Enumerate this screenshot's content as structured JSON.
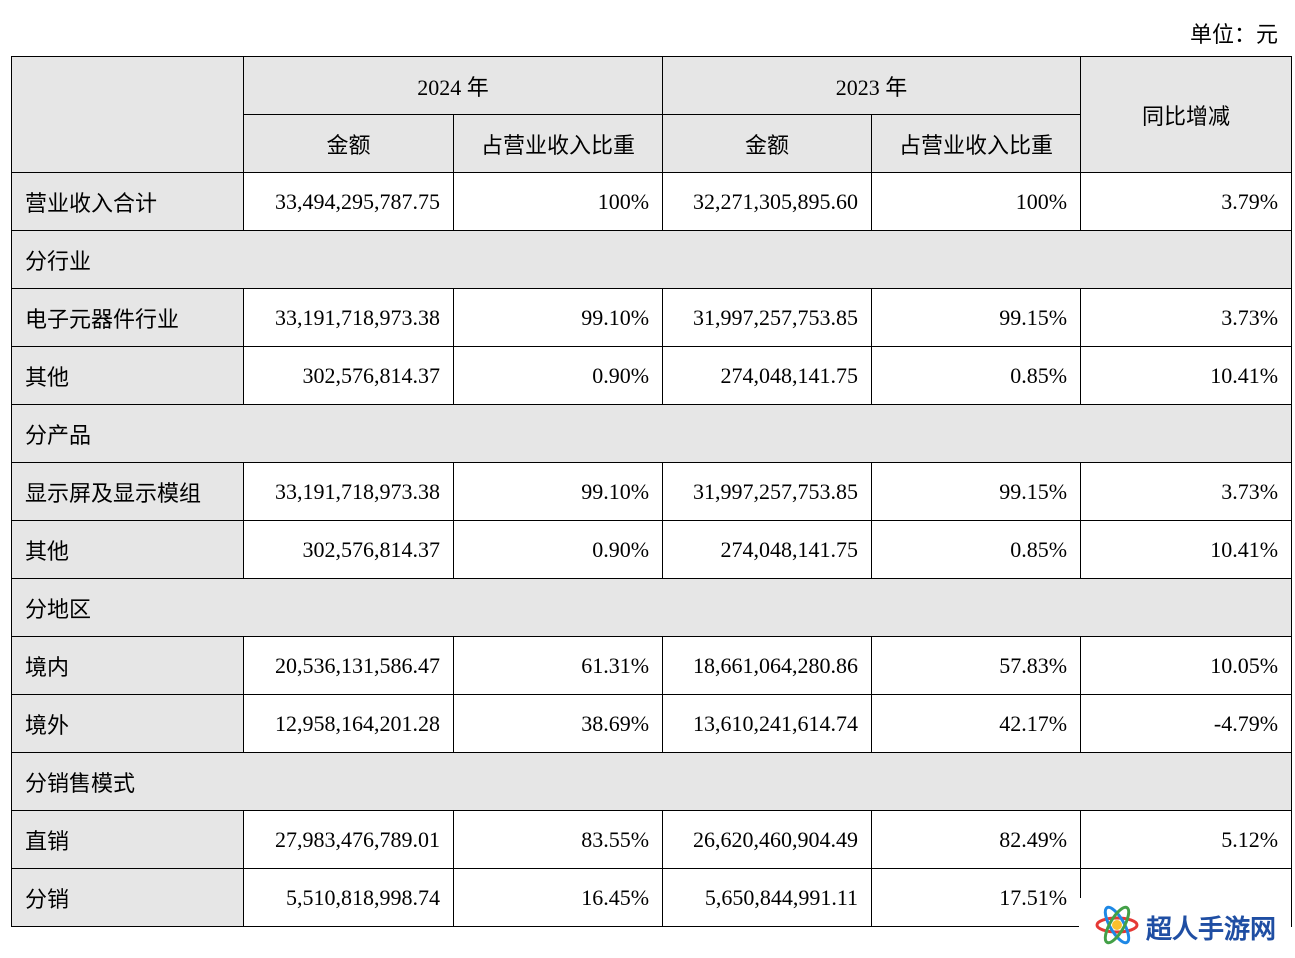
{
  "unit_label": "单位：元",
  "header": {
    "year_2024": "2024 年",
    "year_2023": "2023 年",
    "amount": "金额",
    "ratio": "占营业收入比重",
    "yoy": "同比增减"
  },
  "total": {
    "label": "营业收入合计",
    "amount_2024": "33,494,295,787.75",
    "ratio_2024": "100%",
    "amount_2023": "32,271,305,895.60",
    "ratio_2023": "100%",
    "yoy": "3.79%"
  },
  "sections": [
    {
      "title": "分行业",
      "rows": [
        {
          "label": "电子元器件行业",
          "amount_2024": "33,191,718,973.38",
          "ratio_2024": "99.10%",
          "amount_2023": "31,997,257,753.85",
          "ratio_2023": "99.15%",
          "yoy": "3.73%"
        },
        {
          "label": "其他",
          "amount_2024": "302,576,814.37",
          "ratio_2024": "0.90%",
          "amount_2023": "274,048,141.75",
          "ratio_2023": "0.85%",
          "yoy": "10.41%"
        }
      ]
    },
    {
      "title": "分产品",
      "rows": [
        {
          "label": "显示屏及显示模组",
          "amount_2024": "33,191,718,973.38",
          "ratio_2024": "99.10%",
          "amount_2023": "31,997,257,753.85",
          "ratio_2023": "99.15%",
          "yoy": "3.73%"
        },
        {
          "label": "其他",
          "amount_2024": "302,576,814.37",
          "ratio_2024": "0.90%",
          "amount_2023": "274,048,141.75",
          "ratio_2023": "0.85%",
          "yoy": "10.41%"
        }
      ]
    },
    {
      "title": "分地区",
      "rows": [
        {
          "label": "境内",
          "amount_2024": "20,536,131,586.47",
          "ratio_2024": "61.31%",
          "amount_2023": "18,661,064,280.86",
          "ratio_2023": "57.83%",
          "yoy": "10.05%"
        },
        {
          "label": "境外",
          "amount_2024": "12,958,164,201.28",
          "ratio_2024": "38.69%",
          "amount_2023": "13,610,241,614.74",
          "ratio_2023": "42.17%",
          "yoy": "-4.79%"
        }
      ]
    },
    {
      "title": "分销售模式",
      "rows": [
        {
          "label": "直销",
          "amount_2024": "27,983,476,789.01",
          "ratio_2024": "83.55%",
          "amount_2023": "26,620,460,904.49",
          "ratio_2023": "82.49%",
          "yoy": "5.12%"
        },
        {
          "label": "分销",
          "amount_2024": "5,510,818,998.74",
          "ratio_2024": "16.45%",
          "amount_2023": "5,650,844,991.11",
          "ratio_2023": "17.51%",
          "yoy": ""
        }
      ]
    }
  ],
  "watermark": {
    "text": "超人手游网",
    "icon": "atom-logo-icon",
    "color": "#1f4ea3"
  }
}
